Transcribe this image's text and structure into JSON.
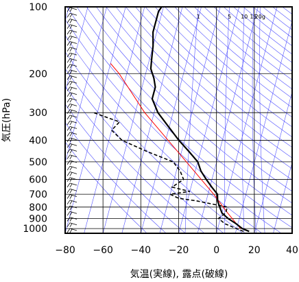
{
  "colors": {
    "background_lines": "#4d4dff",
    "frame": "#000000",
    "grid": "#000000",
    "reference_line": "#ff0000",
    "temperature": "#000000",
    "dewpoint": "#000000"
  },
  "chart_data": {
    "type": "line",
    "diagram": "skew-t log-p",
    "title": "",
    "xlabel": "気温(実線), 露点(破線)",
    "ylabel": "気圧(hPa)",
    "xlim": [
      -80,
      40
    ],
    "ylim": [
      1050,
      100
    ],
    "y_scale": "log",
    "grid": true,
    "x_ticks": [
      -80,
      -60,
      -40,
      -20,
      0,
      20,
      40
    ],
    "x_tick_labels": [
      "−80",
      "−60",
      "−40",
      "−20",
      "0",
      "20",
      "40"
    ],
    "y_ticks": [
      100,
      200,
      300,
      400,
      500,
      600,
      700,
      800,
      900,
      1000
    ],
    "y_tick_labels": [
      "100",
      "200",
      "300",
      "400",
      "500",
      "600",
      "700",
      "800",
      "900",
      "1000"
    ],
    "mixing_ratio_labels": [
      "1",
      "5",
      "10",
      "15",
      "20g"
    ],
    "mixing_ratio_values": [
      1,
      5,
      10,
      15,
      20
    ],
    "temperature": {
      "p": [
        1030,
        1000,
        950,
        900,
        850,
        800,
        750,
        700,
        650,
        600,
        550,
        500,
        450,
        400,
        350,
        300,
        260,
        230,
        210,
        190,
        170,
        150,
        130,
        115,
        105,
        100
      ],
      "t": [
        17,
        13,
        9,
        4,
        0,
        -2,
        -4,
        -5,
        -9,
        -13,
        -17,
        -20,
        -26,
        -33,
        -40,
        -48,
        -53,
        -53,
        -55,
        -58,
        -59,
        -60,
        -62,
        -62,
        -62,
        -61
      ]
    },
    "dewpoint": {
      "p": [
        1030,
        1000,
        950,
        900,
        850,
        800,
        770,
        750,
        730,
        700,
        680,
        650,
        600,
        550,
        500,
        450,
        400,
        360,
        330,
        320,
        300
      ],
      "t": [
        14,
        10,
        3,
        -1,
        2,
        2,
        -8,
        -15,
        -25,
        -30,
        -20,
        -30,
        -25,
        -28,
        -33,
        -48,
        -63,
        -70,
        -67,
        -72,
        -82
      ]
    },
    "reference_line": {
      "p": [
        1000,
        850,
        700,
        500,
        300,
        200,
        180
      ],
      "t": [
        12,
        3,
        -7,
        -26,
        -55,
        -74,
        -80
      ]
    },
    "wind_barbs_count": 40
  }
}
